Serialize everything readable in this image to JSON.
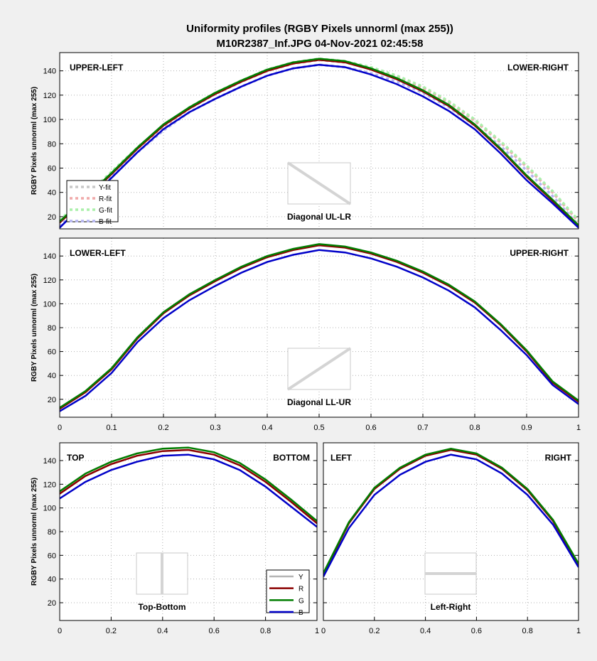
{
  "figure": {
    "title_line1": "Uniformity profiles  (RGBY Pixels unnorml (max 255))",
    "title_line2": "M10R2387_Inf.JPG    04-Nov-2021 02:45:58"
  },
  "colors": {
    "Y": "#b4b4b4",
    "R": "#8b0000",
    "G": "#007d00",
    "B": "#0000c8"
  },
  "chart_data": [
    {
      "type": "line",
      "panel": "diagonal-ul-lr",
      "ylabel": "RGBY Pixels unnorml (max 255)",
      "xlabel": "",
      "xlim": [
        0,
        1
      ],
      "ylim": [
        10,
        155
      ],
      "xticks": [],
      "xtick_labels": [],
      "yticks": [
        20,
        40,
        60,
        80,
        100,
        120,
        140
      ],
      "ytick_labels": [
        "20",
        "40",
        "60",
        "80",
        "100",
        "120",
        "140"
      ],
      "grid": true,
      "left_label": "UPPER-LEFT",
      "right_label": "LOWER-RIGHT",
      "inset_caption": "Diagonal UL-LR",
      "x": [
        0,
        0.05,
        0.1,
        0.15,
        0.2,
        0.25,
        0.3,
        0.35,
        0.4,
        0.45,
        0.5,
        0.55,
        0.6,
        0.65,
        0.7,
        0.75,
        0.8,
        0.85,
        0.9,
        0.95,
        1
      ],
      "series": [
        {
          "name": "Y",
          "values": [
            15,
            35,
            55,
            76,
            95,
            109,
            121,
            131,
            140,
            146,
            149,
            147,
            141,
            133,
            123,
            111,
            95,
            75,
            53,
            33,
            12
          ]
        },
        {
          "name": "R",
          "values": [
            15,
            35,
            55,
            76,
            95,
            109,
            121,
            131,
            140,
            146,
            149,
            147,
            141,
            133,
            123,
            111,
            95,
            75,
            53,
            33,
            12
          ]
        },
        {
          "name": "G",
          "values": [
            16,
            36,
            56,
            77,
            96,
            110,
            122,
            132,
            141,
            147,
            150,
            148,
            142,
            134,
            124,
            112,
            96,
            76,
            54,
            34,
            13
          ]
        },
        {
          "name": "B",
          "values": [
            11,
            32,
            52,
            73,
            92,
            106,
            117,
            127,
            136,
            142,
            145,
            143,
            137,
            129,
            119,
            107,
            92,
            72,
            50,
            31,
            11
          ]
        }
      ],
      "fit_series": [
        {
          "name": "Y-fit",
          "values": [
            16,
            36,
            56,
            76,
            94,
            109,
            121,
            131,
            140,
            146,
            149,
            147,
            142,
            135,
            126,
            114,
            99,
            81,
            61,
            40,
            16
          ]
        },
        {
          "name": "R-fit",
          "values": [
            16,
            36,
            56,
            76,
            94,
            109,
            121,
            131,
            140,
            146,
            149,
            147,
            142,
            135,
            126,
            114,
            99,
            81,
            61,
            40,
            16
          ]
        },
        {
          "name": "G-fit",
          "values": [
            17,
            37,
            57,
            77,
            95,
            110,
            122,
            132,
            141,
            147,
            150,
            148,
            143,
            136,
            127,
            115,
            100,
            82,
            62,
            41,
            17
          ]
        },
        {
          "name": "B-fit",
          "values": [
            12,
            33,
            53,
            73,
            91,
            106,
            117,
            127,
            136,
            142,
            145,
            143,
            138,
            131,
            122,
            110,
            95,
            78,
            58,
            37,
            13
          ]
        }
      ],
      "legend": {
        "placement": "lower-left",
        "entries": [
          "Y-fit",
          "R-fit",
          "G-fit",
          "B-fit"
        ]
      }
    },
    {
      "type": "line",
      "panel": "diagonal-ll-ur",
      "ylabel": "RGBY Pixels unnorml (max 255)",
      "xlabel": "",
      "xlim": [
        0,
        1
      ],
      "ylim": [
        5,
        155
      ],
      "xticks": [
        0,
        0.1,
        0.2,
        0.3,
        0.4,
        0.5,
        0.6,
        0.7,
        0.8,
        0.9,
        1
      ],
      "xtick_labels": [
        "0",
        "0.1",
        "0.2",
        "0.3",
        "0.4",
        "0.5",
        "0.6",
        "0.7",
        "0.8",
        "0.9",
        "1"
      ],
      "yticks": [
        20,
        40,
        60,
        80,
        100,
        120,
        140
      ],
      "ytick_labels": [
        "20",
        "40",
        "60",
        "80",
        "100",
        "120",
        "140"
      ],
      "grid": true,
      "left_label": "LOWER-LEFT",
      "right_label": "UPPER-RIGHT",
      "inset_caption": "Diagonal LL-UR",
      "x": [
        0,
        0.05,
        0.1,
        0.15,
        0.2,
        0.25,
        0.3,
        0.35,
        0.4,
        0.45,
        0.5,
        0.55,
        0.6,
        0.65,
        0.7,
        0.75,
        0.8,
        0.85,
        0.9,
        0.95,
        1
      ],
      "series": [
        {
          "name": "Y",
          "values": [
            12,
            26,
            45,
            71,
            92,
            107,
            119,
            130,
            139,
            145,
            149,
            147,
            142,
            135,
            126,
            115,
            101,
            82,
            60,
            34,
            18
          ]
        },
        {
          "name": "R",
          "values": [
            12,
            26,
            45,
            71,
            92,
            107,
            119,
            130,
            139,
            145,
            149,
            147,
            142,
            135,
            126,
            115,
            101,
            82,
            60,
            34,
            18
          ]
        },
        {
          "name": "G",
          "values": [
            13,
            27,
            46,
            72,
            93,
            108,
            120,
            131,
            140,
            146,
            150,
            148,
            143,
            136,
            127,
            116,
            102,
            83,
            61,
            35,
            19
          ]
        },
        {
          "name": "B",
          "values": [
            10,
            23,
            42,
            68,
            88,
            103,
            115,
            126,
            135,
            141,
            145,
            143,
            138,
            131,
            122,
            111,
            97,
            78,
            57,
            32,
            16
          ]
        }
      ]
    },
    {
      "type": "line",
      "panel": "top-bottom",
      "ylabel": "RGBY Pixels unnorml (max 255)",
      "xlabel": "",
      "xlim": [
        0,
        1
      ],
      "ylim": [
        5,
        155
      ],
      "xticks": [
        0,
        0.2,
        0.4,
        0.6,
        0.8,
        1
      ],
      "xtick_labels": [
        "0",
        "0.2",
        "0.4",
        "0.6",
        "0.8",
        "1"
      ],
      "yticks": [
        20,
        40,
        60,
        80,
        100,
        120,
        140
      ],
      "ytick_labels": [
        "20",
        "40",
        "60",
        "80",
        "100",
        "120",
        "140"
      ],
      "grid": true,
      "left_label": "TOP",
      "right_label": "BOTTOM",
      "inset_caption": "Top-Bottom",
      "x": [
        0,
        0.1,
        0.2,
        0.3,
        0.4,
        0.5,
        0.6,
        0.7,
        0.8,
        0.9,
        1
      ],
      "series": [
        {
          "name": "Y",
          "values": [
            112,
            127,
            137,
            144,
            148,
            149,
            145,
            136,
            122,
            105,
            87
          ]
        },
        {
          "name": "R",
          "values": [
            112,
            127,
            137,
            144,
            148,
            149,
            145,
            136,
            122,
            105,
            87
          ]
        },
        {
          "name": "G",
          "values": [
            114,
            129,
            139,
            146,
            150,
            151,
            147,
            138,
            124,
            107,
            89
          ]
        },
        {
          "name": "B",
          "values": [
            108,
            122,
            132,
            139,
            144,
            145,
            141,
            132,
            118,
            101,
            84
          ]
        }
      ],
      "legend": {
        "placement": "lower-right",
        "entries": [
          "Y",
          "R",
          "G",
          "B"
        ]
      }
    },
    {
      "type": "line",
      "panel": "left-right",
      "ylabel": "",
      "xlabel": "",
      "xlim": [
        0,
        1
      ],
      "ylim": [
        5,
        155
      ],
      "xticks": [
        0,
        0.2,
        0.4,
        0.6,
        0.8,
        1
      ],
      "xtick_labels": [
        "0",
        "0.2",
        "0.4",
        "0.6",
        "0.8",
        "1"
      ],
      "yticks": [
        20,
        40,
        60,
        80,
        100,
        120,
        140
      ],
      "ytick_labels": [],
      "grid": true,
      "left_label": "LEFT",
      "right_label": "RIGHT",
      "inset_caption": "Left-Right",
      "x": [
        0,
        0.1,
        0.2,
        0.3,
        0.4,
        0.5,
        0.6,
        0.7,
        0.8,
        0.9,
        1
      ],
      "series": [
        {
          "name": "Y",
          "values": [
            44,
            87,
            116,
            133,
            144,
            149,
            145,
            133,
            115,
            89,
            52
          ]
        },
        {
          "name": "R",
          "values": [
            44,
            87,
            116,
            133,
            144,
            149,
            145,
            133,
            115,
            89,
            52
          ]
        },
        {
          "name": "G",
          "values": [
            45,
            88,
            117,
            134,
            145,
            150,
            146,
            134,
            116,
            90,
            53
          ]
        },
        {
          "name": "B",
          "values": [
            42,
            83,
            111,
            128,
            139,
            145,
            141,
            129,
            111,
            86,
            50
          ]
        }
      ]
    }
  ]
}
